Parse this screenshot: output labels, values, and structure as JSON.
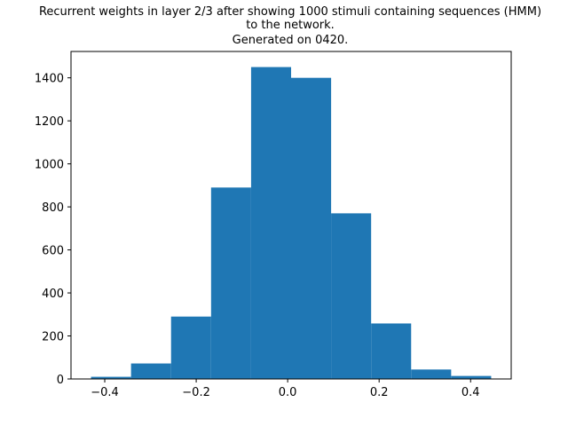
{
  "chart_data": {
    "type": "bar",
    "title_lines": [
      "Recurrent weights in layer 2/3 after showing 1000 stimuli containing sequences (HMM)",
      "to the network.",
      "Generated on 0420."
    ],
    "xlabel": "",
    "ylabel": "",
    "bin_edges": [
      -0.43,
      -0.3425,
      -0.255,
      -0.1675,
      -0.08,
      0.0075,
      0.095,
      0.1825,
      0.27,
      0.3575,
      0.445
    ],
    "values": [
      10,
      72,
      290,
      890,
      1450,
      1400,
      770,
      258,
      44,
      14
    ],
    "xlim": [
      -0.4738,
      0.4888
    ],
    "ylim": [
      0,
      1522.5
    ],
    "xticks": [
      -0.4,
      -0.2,
      0.0,
      0.2,
      0.4
    ],
    "xtick_labels": [
      "−0.4",
      "−0.2",
      "0.0",
      "0.2",
      "0.4"
    ],
    "yticks": [
      0,
      200,
      400,
      600,
      800,
      1000,
      1200,
      1400
    ],
    "ytick_labels": [
      "0",
      "200",
      "400",
      "600",
      "800",
      "1000",
      "1200",
      "1400"
    ],
    "bar_color": "#1f77b4",
    "grid": false,
    "legend": "none"
  }
}
